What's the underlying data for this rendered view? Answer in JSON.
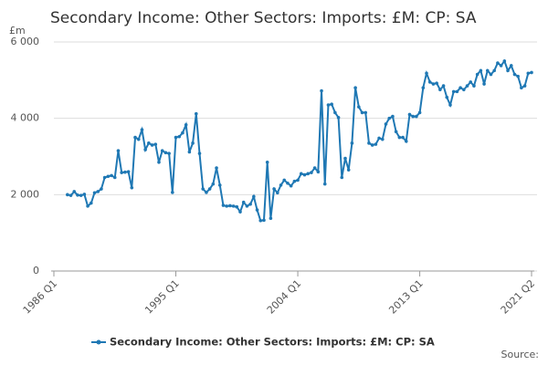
{
  "chart_data": {
    "type": "line",
    "title": "Secondary Income: Other Sectors: Imports: £M: CP: SA",
    "y_label": "£m",
    "source": "Source:",
    "categories": [
      "1986 Q1",
      null,
      null,
      null,
      null,
      null,
      null,
      null,
      null,
      null,
      null,
      null,
      null,
      null,
      null,
      null,
      null,
      null,
      null,
      null,
      null,
      null,
      null,
      null,
      null,
      null,
      null,
      null,
      null,
      null,
      null,
      null,
      null,
      null,
      null,
      null,
      "1995 Q1",
      null,
      null,
      null,
      null,
      null,
      null,
      null,
      null,
      null,
      null,
      null,
      null,
      null,
      null,
      null,
      null,
      null,
      null,
      null,
      null,
      null,
      null,
      null,
      null,
      null,
      null,
      null,
      null,
      null,
      null,
      null,
      null,
      null,
      null,
      null,
      "2004 Q1",
      null,
      null,
      null,
      null,
      null,
      null,
      null,
      null,
      null,
      null,
      null,
      null,
      null,
      null,
      null,
      null,
      null,
      null,
      null,
      null,
      null,
      null,
      null,
      null,
      null,
      null,
      null,
      null,
      null,
      null,
      null,
      null,
      null,
      null,
      null,
      "2013 Q1",
      null,
      null,
      null,
      null,
      null,
      null,
      null,
      null,
      null,
      null,
      null,
      null,
      null,
      null,
      null,
      null,
      null,
      null,
      null,
      null,
      null,
      null,
      null,
      null,
      null,
      null,
      null,
      null,
      null,
      null,
      null,
      null,
      "2021 Q2"
    ],
    "series": [
      {
        "name": "Secondary Income: Other Sectors: Imports: £M: CP: SA",
        "color": "#1f78b4",
        "values": [
          null,
          null,
          null,
          null,
          2000,
          1980,
          2080,
          1990,
          1980,
          2010,
          1700,
          1780,
          2050,
          2080,
          2150,
          2450,
          2480,
          2500,
          2450,
          3150,
          2580,
          2590,
          2600,
          2180,
          3500,
          3450,
          3700,
          3180,
          3350,
          3300,
          3320,
          2850,
          3150,
          3100,
          3080,
          2060,
          3500,
          3520,
          3620,
          3830,
          3120,
          3350,
          4120,
          3080,
          2150,
          2060,
          2150,
          2280,
          2700,
          2250,
          1720,
          1700,
          1710,
          1700,
          1680,
          1550,
          1800,
          1700,
          1750,
          1950,
          1600,
          1320,
          1330,
          2850,
          1380,
          2150,
          2050,
          2250,
          2380,
          2300,
          2230,
          2350,
          2380,
          2550,
          2520,
          2550,
          2580,
          2700,
          2600,
          4720,
          2280,
          4350,
          4370,
          4150,
          4020,
          2450,
          2950,
          2650,
          3350,
          4800,
          4300,
          4150,
          4150,
          3350,
          3300,
          3320,
          3480,
          3450,
          3850,
          4000,
          4050,
          3650,
          3500,
          3500,
          3400,
          4100,
          4050,
          4050,
          4150,
          4800,
          5180,
          4950,
          4900,
          4920,
          4750,
          4850,
          4550,
          4350,
          4700,
          4700,
          4800,
          4750,
          4850,
          4950,
          4850,
          5150,
          5250,
          4900,
          5250,
          5150,
          5250,
          5450,
          5380,
          5500,
          5250,
          5380,
          5150,
          5100,
          4800,
          4850,
          5180,
          5200
        ]
      }
    ],
    "ylim": [
      0,
      6000
    ],
    "yticks": [
      0,
      {
        "value": 2000,
        "label": "2 000"
      },
      {
        "value": 4000,
        "label": "4 000"
      },
      {
        "value": 6000,
        "label": "6 000"
      }
    ],
    "grid": true
  }
}
